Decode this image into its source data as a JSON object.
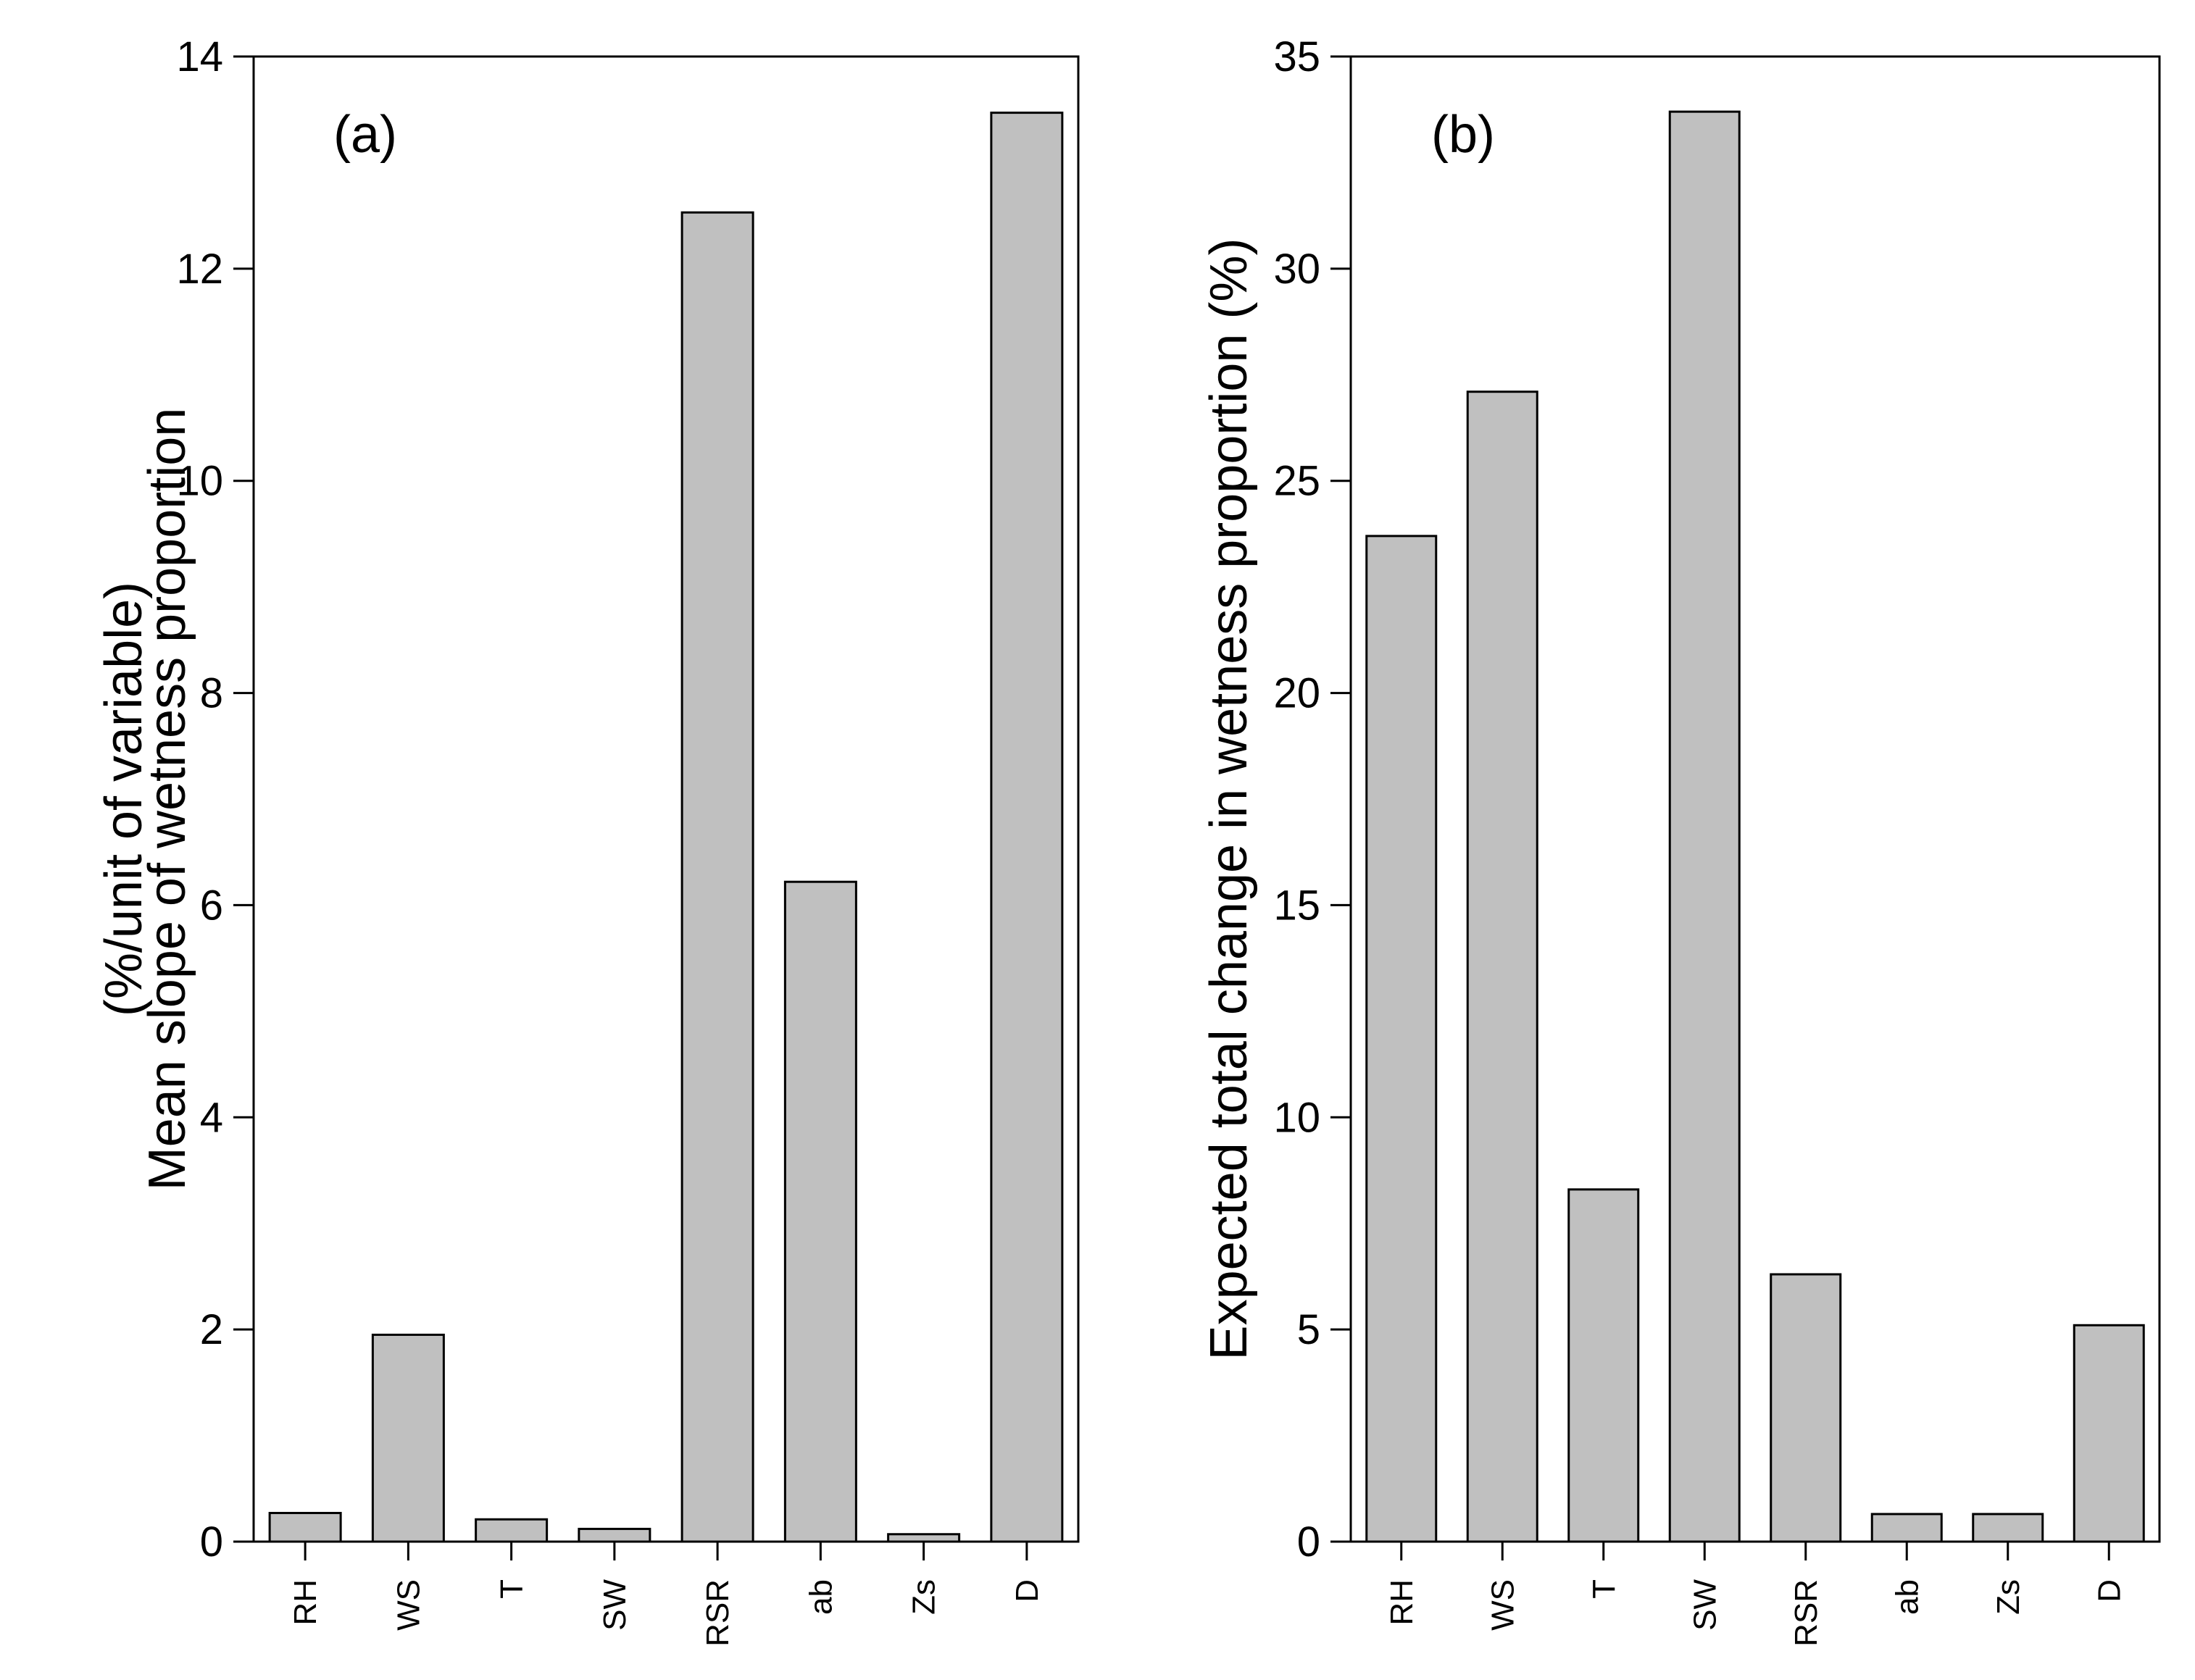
{
  "figure": {
    "bar_fill": "#c0c0c0",
    "edge_color": "#000000"
  },
  "chart_data": [
    {
      "type": "bar",
      "panel_label": "(a)",
      "categories": [
        "RH",
        "WS",
        "T",
        "SW",
        "RSR",
        "ab",
        "Zs",
        "D"
      ],
      "values": [
        0.27,
        1.95,
        0.21,
        0.12,
        12.53,
        6.22,
        0.07,
        13.47
      ],
      "ylabel_lines": [
        "Mean slope of wetness proportion",
        "(%/unit of variable)"
      ],
      "xlabel": "",
      "ylim": [
        0,
        14
      ],
      "yticks": [
        0,
        2,
        4,
        6,
        8,
        10,
        12,
        14
      ],
      "ytick_labels": [
        "0",
        "2",
        "4",
        "6",
        "8",
        "10",
        "12",
        "14"
      ]
    },
    {
      "type": "bar",
      "panel_label": "(b)",
      "categories": [
        "RH",
        "WS",
        "T",
        "SW",
        "RSR",
        "ab",
        "Zs",
        "D"
      ],
      "values": [
        23.7,
        27.1,
        8.3,
        33.7,
        6.3,
        0.65,
        0.65,
        5.1
      ],
      "ylabel_lines": [
        "Expected total change in wetness proportion (%)"
      ],
      "xlabel": "",
      "ylim": [
        0,
        35
      ],
      "yticks": [
        0,
        5,
        10,
        15,
        20,
        25,
        30,
        35
      ],
      "ytick_labels": [
        "0",
        "5",
        "10",
        "15",
        "20",
        "25",
        "30",
        "35"
      ]
    }
  ]
}
